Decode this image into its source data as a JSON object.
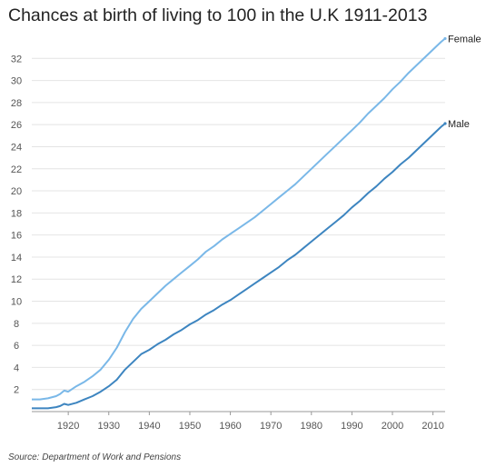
{
  "chart_data": {
    "type": "line",
    "title": "Chances at birth of living to 100 in the U.K 1911-2013",
    "xlabel": "",
    "ylabel": "",
    "xlim": [
      1911,
      2013
    ],
    "ylim": [
      0,
      34
    ],
    "x_ticks": [
      1920,
      1930,
      1940,
      1950,
      1960,
      1970,
      1980,
      1990,
      2000,
      2010
    ],
    "y_ticks": [
      2,
      4,
      6,
      8,
      10,
      12,
      14,
      16,
      18,
      20,
      22,
      24,
      26,
      28,
      30,
      32
    ],
    "grid": "horizontal",
    "series": [
      {
        "name": "Female",
        "color": "#7ab8e8",
        "points": [
          [
            1911,
            1.1
          ],
          [
            1913,
            1.1
          ],
          [
            1915,
            1.2
          ],
          [
            1917,
            1.4
          ],
          [
            1918,
            1.6
          ],
          [
            1919,
            1.9
          ],
          [
            1920,
            1.8
          ],
          [
            1922,
            2.3
          ],
          [
            1924,
            2.7
          ],
          [
            1926,
            3.2
          ],
          [
            1928,
            3.8
          ],
          [
            1930,
            4.7
          ],
          [
            1932,
            5.8
          ],
          [
            1934,
            7.2
          ],
          [
            1936,
            8.4
          ],
          [
            1938,
            9.3
          ],
          [
            1940,
            10.0
          ],
          [
            1942,
            10.7
          ],
          [
            1944,
            11.4
          ],
          [
            1946,
            12.0
          ],
          [
            1948,
            12.6
          ],
          [
            1950,
            13.2
          ],
          [
            1952,
            13.8
          ],
          [
            1954,
            14.5
          ],
          [
            1956,
            15.0
          ],
          [
            1958,
            15.6
          ],
          [
            1960,
            16.1
          ],
          [
            1962,
            16.6
          ],
          [
            1964,
            17.1
          ],
          [
            1966,
            17.6
          ],
          [
            1968,
            18.2
          ],
          [
            1970,
            18.8
          ],
          [
            1972,
            19.4
          ],
          [
            1974,
            20.0
          ],
          [
            1976,
            20.6
          ],
          [
            1978,
            21.3
          ],
          [
            1980,
            22.0
          ],
          [
            1982,
            22.7
          ],
          [
            1984,
            23.4
          ],
          [
            1986,
            24.1
          ],
          [
            1988,
            24.8
          ],
          [
            1990,
            25.5
          ],
          [
            1992,
            26.2
          ],
          [
            1994,
            27.0
          ],
          [
            1996,
            27.7
          ],
          [
            1998,
            28.4
          ],
          [
            2000,
            29.2
          ],
          [
            2002,
            29.9
          ],
          [
            2004,
            30.7
          ],
          [
            2006,
            31.4
          ],
          [
            2008,
            32.1
          ],
          [
            2010,
            32.8
          ],
          [
            2012,
            33.5
          ],
          [
            2013,
            33.8
          ]
        ]
      },
      {
        "name": "Male",
        "color": "#3d85c0",
        "points": [
          [
            1911,
            0.3
          ],
          [
            1913,
            0.3
          ],
          [
            1915,
            0.3
          ],
          [
            1917,
            0.4
          ],
          [
            1918,
            0.5
          ],
          [
            1919,
            0.7
          ],
          [
            1920,
            0.6
          ],
          [
            1922,
            0.8
          ],
          [
            1924,
            1.1
          ],
          [
            1926,
            1.4
          ],
          [
            1928,
            1.8
          ],
          [
            1930,
            2.3
          ],
          [
            1932,
            2.9
          ],
          [
            1934,
            3.8
          ],
          [
            1936,
            4.5
          ],
          [
            1938,
            5.2
          ],
          [
            1940,
            5.6
          ],
          [
            1942,
            6.1
          ],
          [
            1944,
            6.5
          ],
          [
            1946,
            7.0
          ],
          [
            1948,
            7.4
          ],
          [
            1950,
            7.9
          ],
          [
            1952,
            8.3
          ],
          [
            1954,
            8.8
          ],
          [
            1956,
            9.2
          ],
          [
            1958,
            9.7
          ],
          [
            1960,
            10.1
          ],
          [
            1962,
            10.6
          ],
          [
            1964,
            11.1
          ],
          [
            1966,
            11.6
          ],
          [
            1968,
            12.1
          ],
          [
            1970,
            12.6
          ],
          [
            1972,
            13.1
          ],
          [
            1974,
            13.7
          ],
          [
            1976,
            14.2
          ],
          [
            1978,
            14.8
          ],
          [
            1980,
            15.4
          ],
          [
            1982,
            16.0
          ],
          [
            1984,
            16.6
          ],
          [
            1986,
            17.2
          ],
          [
            1988,
            17.8
          ],
          [
            1990,
            18.5
          ],
          [
            1992,
            19.1
          ],
          [
            1994,
            19.8
          ],
          [
            1996,
            20.4
          ],
          [
            1998,
            21.1
          ],
          [
            2000,
            21.7
          ],
          [
            2002,
            22.4
          ],
          [
            2004,
            23.0
          ],
          [
            2006,
            23.7
          ],
          [
            2008,
            24.4
          ],
          [
            2010,
            25.1
          ],
          [
            2012,
            25.8
          ],
          [
            2013,
            26.1
          ]
        ]
      }
    ],
    "source": "Source: Department of Work and Pensions"
  }
}
